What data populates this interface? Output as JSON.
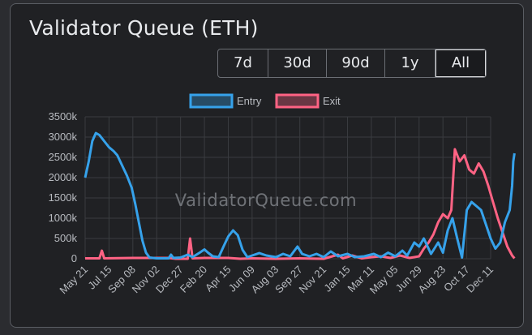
{
  "title": "Validator Queue (ETH)",
  "ranges": [
    {
      "label": "7d",
      "active": false
    },
    {
      "label": "30d",
      "active": false
    },
    {
      "label": "90d",
      "active": false
    },
    {
      "label": "1y",
      "active": false
    },
    {
      "label": "All",
      "active": true
    }
  ],
  "watermark": "ValidatorQueue.com",
  "colors": {
    "entry": "#36a2eb",
    "exit": "#ff6384",
    "grid": "#3a3c40"
  },
  "chart_data": {
    "type": "line",
    "title": "",
    "xlabel": "",
    "ylabel": "",
    "ylim": [
      0,
      3500
    ],
    "y_unit": "k",
    "yticks": [
      "0",
      "500k",
      "1000k",
      "1500k",
      "2000k",
      "2500k",
      "3000k",
      "3500k"
    ],
    "x_ticks": [
      "May 21",
      "Jul 15",
      "Sep 08",
      "Nov 02",
      "Dec 27",
      "Feb 20",
      "Apr 15",
      "Jun 09",
      "Aug 03",
      "Sep 27",
      "Nov 21",
      "Jan 15",
      "Mar 11",
      "May 05",
      "Jun 29",
      "Aug 23",
      "Oct 17",
      "Dec 11"
    ],
    "grid": true,
    "legend_position": "top-center",
    "series": [
      {
        "name": "Entry",
        "points": [
          [
            0,
            2000
          ],
          [
            0.15,
            2400
          ],
          [
            0.3,
            2900
          ],
          [
            0.45,
            3100
          ],
          [
            0.6,
            3050
          ],
          [
            0.8,
            2900
          ],
          [
            1.0,
            2750
          ],
          [
            1.2,
            2650
          ],
          [
            1.35,
            2550
          ],
          [
            1.55,
            2300
          ],
          [
            1.75,
            2050
          ],
          [
            1.95,
            1750
          ],
          [
            2.1,
            1350
          ],
          [
            2.25,
            900
          ],
          [
            2.4,
            450
          ],
          [
            2.55,
            150
          ],
          [
            2.7,
            30
          ],
          [
            3.0,
            10
          ],
          [
            3.5,
            10
          ],
          [
            3.6,
            100
          ],
          [
            3.7,
            20
          ],
          [
            4.0,
            30
          ],
          [
            4.3,
            100
          ],
          [
            4.5,
            40
          ],
          [
            4.8,
            150
          ],
          [
            5.0,
            230
          ],
          [
            5.15,
            150
          ],
          [
            5.35,
            60
          ],
          [
            5.6,
            40
          ],
          [
            5.8,
            300
          ],
          [
            6.0,
            550
          ],
          [
            6.2,
            700
          ],
          [
            6.4,
            580
          ],
          [
            6.6,
            220
          ],
          [
            6.8,
            40
          ],
          [
            7.0,
            80
          ],
          [
            7.3,
            140
          ],
          [
            7.6,
            80
          ],
          [
            8.0,
            40
          ],
          [
            8.3,
            120
          ],
          [
            8.6,
            60
          ],
          [
            8.9,
            300
          ],
          [
            9.1,
            120
          ],
          [
            9.4,
            60
          ],
          [
            9.7,
            120
          ],
          [
            10.0,
            40
          ],
          [
            10.3,
            180
          ],
          [
            10.6,
            60
          ],
          [
            11.0,
            120
          ],
          [
            11.3,
            40
          ],
          [
            11.7,
            60
          ],
          [
            12.1,
            120
          ],
          [
            12.4,
            40
          ],
          [
            12.7,
            150
          ],
          [
            13.0,
            60
          ],
          [
            13.3,
            200
          ],
          [
            13.5,
            80
          ],
          [
            13.8,
            400
          ],
          [
            14.0,
            300
          ],
          [
            14.2,
            500
          ],
          [
            14.5,
            120
          ],
          [
            14.8,
            400
          ],
          [
            15.0,
            150
          ],
          [
            15.2,
            700
          ],
          [
            15.4,
            1000
          ],
          [
            15.6,
            500
          ],
          [
            15.8,
            30
          ],
          [
            16.0,
            1200
          ],
          [
            16.2,
            1400
          ],
          [
            16.4,
            1300
          ],
          [
            16.6,
            1200
          ],
          [
            16.8,
            850
          ],
          [
            17.0,
            500
          ],
          [
            17.2,
            250
          ],
          [
            17.4,
            400
          ],
          [
            17.6,
            900
          ],
          [
            17.8,
            1200
          ],
          [
            17.9,
            1800
          ],
          [
            17.95,
            2400
          ],
          [
            18.0,
            2600
          ]
        ]
      },
      {
        "name": "Exit",
        "points": [
          [
            0,
            10
          ],
          [
            0.6,
            10
          ],
          [
            0.7,
            200
          ],
          [
            0.8,
            10
          ],
          [
            2.0,
            20
          ],
          [
            3.0,
            20
          ],
          [
            3.5,
            20
          ],
          [
            3.8,
            0
          ],
          [
            4.3,
            0
          ],
          [
            4.4,
            500
          ],
          [
            4.5,
            10
          ],
          [
            5.0,
            20
          ],
          [
            6.0,
            20
          ],
          [
            6.5,
            0
          ],
          [
            7.0,
            10
          ],
          [
            8.0,
            0
          ],
          [
            9.0,
            10
          ],
          [
            10.0,
            0
          ],
          [
            10.6,
            100
          ],
          [
            10.8,
            10
          ],
          [
            11.2,
            80
          ],
          [
            11.6,
            10
          ],
          [
            12.0,
            40
          ],
          [
            12.4,
            60
          ],
          [
            12.8,
            20
          ],
          [
            13.2,
            80
          ],
          [
            13.6,
            20
          ],
          [
            14.0,
            60
          ],
          [
            14.2,
            250
          ],
          [
            14.4,
            400
          ],
          [
            14.6,
            600
          ],
          [
            14.8,
            900
          ],
          [
            15.0,
            1100
          ],
          [
            15.2,
            1000
          ],
          [
            15.35,
            1200
          ],
          [
            15.5,
            2700
          ],
          [
            15.7,
            2400
          ],
          [
            15.9,
            2550
          ],
          [
            16.1,
            2200
          ],
          [
            16.3,
            2100
          ],
          [
            16.5,
            2350
          ],
          [
            16.7,
            2150
          ],
          [
            16.9,
            1800
          ],
          [
            17.1,
            1400
          ],
          [
            17.3,
            1000
          ],
          [
            17.5,
            650
          ],
          [
            17.7,
            300
          ],
          [
            17.9,
            80
          ],
          [
            18.0,
            10
          ]
        ]
      }
    ]
  }
}
